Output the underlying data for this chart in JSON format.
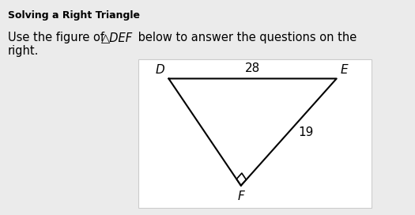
{
  "title": "Solving a Right Triangle",
  "line1_plain1": "Use the figure of ",
  "line1_italic": "△DEF",
  "line1_plain2": " below to answer the questions on the",
  "line2": "right.",
  "bg_color": "#ebebeb",
  "box_bg": "#ffffff",
  "box_edge_color": "#cccccc",
  "label_D": "D",
  "label_E": "E",
  "label_F": "F",
  "side_DE_label": "28",
  "side_EF_label": "19",
  "line_color": "#000000",
  "font_color": "#000000",
  "title_fontsize": 9,
  "body_fontsize": 10.5,
  "vertex_fontsize": 11,
  "side_fontsize": 11,
  "D": [
    0.14,
    0.82
  ],
  "E": [
    0.82,
    0.82
  ],
  "F": [
    0.44,
    0.13
  ]
}
